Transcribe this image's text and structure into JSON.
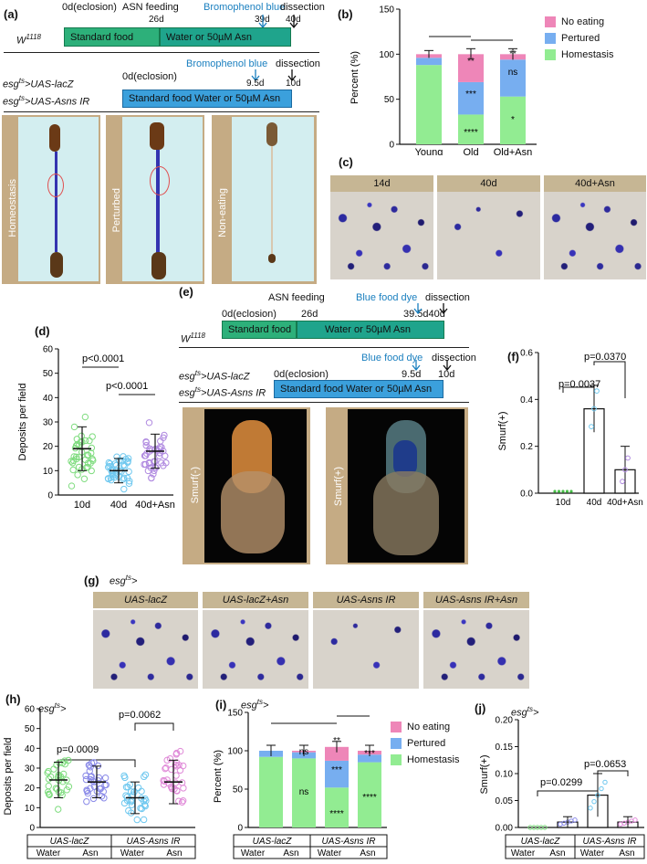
{
  "panel_a": {
    "label": "(a)",
    "strain1": "W",
    "strain1_sup": "1118",
    "t0": "0d(eclosion)",
    "asn_feeding": "ASN feeding",
    "t26": "26d",
    "bromophenol": "Bromophenol blue",
    "t39": "39d",
    "dissection": "dissection",
    "t40": "40d",
    "bar_standard": "Standard food",
    "bar_water": "Water or 50µM Asn",
    "lacz_a": "esg",
    "lacz_sup": "ts",
    "lacz_b": ">UAS-lacZ",
    "asns_b": ">UAS-Asns IR",
    "t0_2": "0d(eclosion)",
    "bromophenol_2": "Bromophenol blue",
    "t95": "9.5d",
    "dissection_2": "dissection",
    "t10": "10d",
    "bar_combined": "Standard food Water or 50µM Asn",
    "photo1": "Homeostasis",
    "photo2": "Perturbed",
    "photo3": "Non-eating"
  },
  "panel_b": {
    "label": "(b)",
    "ylabel": "Percent (%)",
    "legend": [
      "No eating",
      "Pertured",
      "Homestasis"
    ],
    "colors": {
      "no_eating": "#ee86b8",
      "perturbed": "#77aef0",
      "homeostasis": "#92ec92"
    },
    "chart_data": {
      "type": "bar",
      "categories": [
        "Young",
        "Old",
        "Old+Asn"
      ],
      "series": [
        {
          "name": "Homestasis",
          "values": [
            88,
            33,
            53
          ]
        },
        {
          "name": "Pertured",
          "values": [
            8,
            36,
            41
          ]
        },
        {
          "name": "No eating",
          "values": [
            4,
            31,
            6
          ]
        }
      ],
      "ylim": [
        0,
        150
      ],
      "yticks": [
        0,
        50,
        100,
        150
      ],
      "sig": {
        "old_no_eating": "**",
        "old_perturbed": "***",
        "old_homeostasis": "****",
        "oldasn_no_eating": "**",
        "oldasn_perturbed": "ns",
        "oldasn_homeostasis": "*"
      }
    }
  },
  "panel_c": {
    "label": "(c)",
    "heads": [
      "14d",
      "40d",
      "40d+Asn"
    ]
  },
  "panel_d": {
    "label": "(d)",
    "ylabel": "Deposits per field",
    "p1": "p<0.0001",
    "p2": "p<0.0001",
    "colors": [
      "#7fdc7f",
      "#6fc8ef",
      "#b08ae0"
    ],
    "chart_data": {
      "type": "scatter",
      "categories": [
        "10d",
        "40d",
        "40d+Asn"
      ],
      "means": [
        19,
        10,
        18
      ],
      "sd": [
        9,
        5,
        7
      ],
      "ylim": [
        0,
        60
      ],
      "yticks": [
        0,
        10,
        20,
        30,
        40,
        50,
        60
      ]
    }
  },
  "panel_e": {
    "label": "(e)",
    "asn_feeding": "ASN feeding",
    "blue_dye": "Blue food dye",
    "dissection": "dissection",
    "t0": "0d(eclosion)",
    "t26": "26d",
    "t39": "39.5d40d",
    "bar_standard": "Standard food",
    "bar_water": "Water or 50µM Asn",
    "strain": "W",
    "strain_sup": "1118",
    "blue_dye_2": "Blue food dye",
    "dissection_2": "dissection",
    "lacz_a": "esg",
    "lacz_sup": "ts",
    "lacz_b": ">UAS-lacZ",
    "asns_b": ">UAS-Asns IR",
    "t0_2": "0d(eclosion)",
    "t95": "9.5d",
    "t10": "10d",
    "bar_combined": "Standard food Water or 50µM Asn",
    "smurf_neg": "Smurf(-)",
    "smurf_pos": "Smurf(+)"
  },
  "panel_f": {
    "label": "(f)",
    "ylabel": "Smurf(+)",
    "p1": "p=0.0037",
    "p2": "p=0.0370",
    "chart_data": {
      "type": "bar",
      "categories": [
        "10d",
        "40d",
        "40d+Asn"
      ],
      "values": [
        0.0,
        0.36,
        0.1
      ],
      "sd": [
        0,
        0.1,
        0.1
      ],
      "ylim": [
        0,
        0.6
      ],
      "yticks": [
        0.0,
        0.2,
        0.4,
        0.6
      ]
    }
  },
  "panel_g": {
    "label": "(g)",
    "genotype_a": "esg",
    "genotype_sup": "ts",
    "genotype_b": ">",
    "heads": [
      "UAS-lacZ",
      "UAS-lacZ+Asn",
      "UAS-Asns IR",
      "UAS-Asns IR+Asn"
    ]
  },
  "panel_h": {
    "label": "(h)",
    "genotype_a": "esg",
    "genotype_sup": "ts",
    "genotype_b": ">",
    "ylabel": "Deposits per field",
    "p1": "p=0.0009",
    "p2": "p=0.0062",
    "group1": "UAS-lacZ",
    "group2": "UAS-Asns IR",
    "cond": [
      "Water",
      "Asn",
      "Water",
      "Asn"
    ],
    "colors": [
      "#7fdc7f",
      "#8a8ae8",
      "#6fc8ef",
      "#e08ad8"
    ],
    "chart_data": {
      "type": "scatter",
      "categories": [
        "Water",
        "Asn",
        "Water",
        "Asn"
      ],
      "means": [
        24,
        23,
        15,
        23
      ],
      "sd": [
        9,
        8,
        8,
        11
      ],
      "ylim": [
        0,
        60
      ],
      "yticks": [
        0,
        10,
        20,
        30,
        40,
        50,
        60
      ]
    }
  },
  "panel_i": {
    "label": "(i)",
    "genotype_a": "esg",
    "genotype_sup": "ts",
    "genotype_b": ">",
    "ylabel": "Percent (%)",
    "legend": [
      "No eating",
      "Pertured",
      "Homestasis"
    ],
    "group1": "UAS-lacZ",
    "group2": "UAS-Asns IR",
    "cond": [
      "Water",
      "Asn",
      "Water",
      "Asn"
    ],
    "chart_data": {
      "type": "bar",
      "categories": [
        "Water",
        "Asn",
        "Water",
        "Asn"
      ],
      "series": [
        {
          "name": "Homestasis",
          "values": [
            92,
            90,
            52,
            85
          ]
        },
        {
          "name": "Pertured",
          "values": [
            8,
            8,
            35,
            10
          ]
        },
        {
          "name": "No eating",
          "values": [
            0,
            2,
            18,
            5
          ]
        }
      ],
      "ylim": [
        0,
        150
      ],
      "yticks": [
        0,
        50,
        100,
        150
      ],
      "sig": {
        "g2": "ns",
        "g2_low": "ns",
        "g3_top": "**",
        "g3_mid": "***",
        "g3_low": "****",
        "g4_mid": "***",
        "g4_low": "****"
      }
    }
  },
  "panel_j": {
    "label": "(j)",
    "genotype_a": "esg",
    "genotype_sup": "ts",
    "genotype_b": ">",
    "ylabel": "Smurf(+)",
    "p1": "p=0.0299",
    "p2": "p=0.0653",
    "group1": "UAS-lacZ",
    "group2": "UAS-Asns IR",
    "cond": [
      "Water",
      "Asn",
      "Water",
      "Asn"
    ],
    "chart_data": {
      "type": "bar",
      "categories": [
        "Water",
        "Asn",
        "Water",
        "Asn"
      ],
      "values": [
        0.0,
        0.01,
        0.06,
        0.01
      ],
      "sd": [
        0,
        0.01,
        0.04,
        0.01
      ],
      "ylim": [
        0,
        0.2
      ],
      "yticks": [
        0.0,
        0.05,
        0.1,
        0.15,
        0.2
      ]
    }
  }
}
